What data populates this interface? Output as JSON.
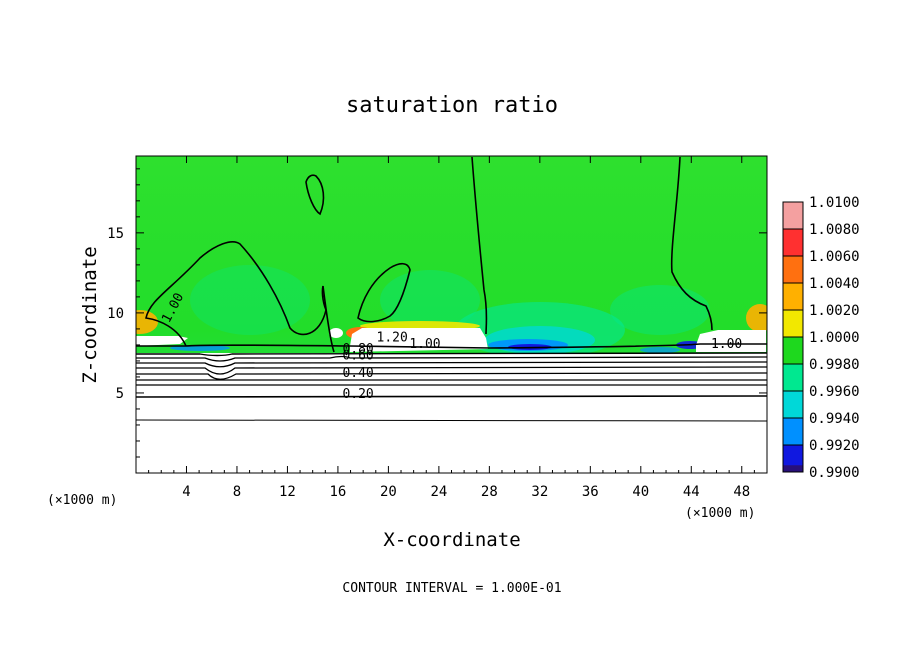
{
  "chart_data": {
    "type": "heatmap",
    "title": "saturation ratio",
    "xlabel": "X-coordinate",
    "ylabel": "Z-coordinate",
    "x_unit_left": "(×1000 m)",
    "x_unit_right": "(×1000 m)",
    "xlim": [
      0,
      50
    ],
    "ylim": [
      0,
      19.8
    ],
    "x_ticks": [
      4,
      8,
      12,
      16,
      20,
      24,
      28,
      32,
      36,
      40,
      44,
      48
    ],
    "y_ticks": [
      5,
      10,
      15
    ],
    "footer": "CONTOUR INTERVAL = 1.000E-01",
    "colorbar": {
      "levels": [
        "1.0100",
        "1.0080",
        "1.0060",
        "1.0040",
        "1.0020",
        "1.0000",
        "0.9980",
        "0.9960",
        "0.9940",
        "0.9920",
        "0.9900"
      ],
      "colors": [
        "#f4a0a0",
        "#ff3030",
        "#ff7010",
        "#ffb000",
        "#f2e800",
        "#1ed81e",
        "#00e890",
        "#00d8d8",
        "#0090ff",
        "#1018e0",
        "#28107a"
      ]
    },
    "contour_labels": [
      {
        "text": "1.00",
        "x": 3.2,
        "y": 10.2
      },
      {
        "text": "1.20",
        "x": 20.3,
        "y": 8.2
      },
      {
        "text": "1.00",
        "x": 22.9,
        "y": 7.8
      },
      {
        "text": "1.00",
        "x": 46.8,
        "y": 7.8
      },
      {
        "text": "0.80",
        "x": 17.6,
        "y": 7.5
      },
      {
        "text": "0.60",
        "x": 17.6,
        "y": 7.1
      },
      {
        "text": "0.40",
        "x": 17.6,
        "y": 6.0
      },
      {
        "text": "0.20",
        "x": 17.6,
        "y": 4.7
      }
    ],
    "low_value_region_top_z": 8.0
  }
}
